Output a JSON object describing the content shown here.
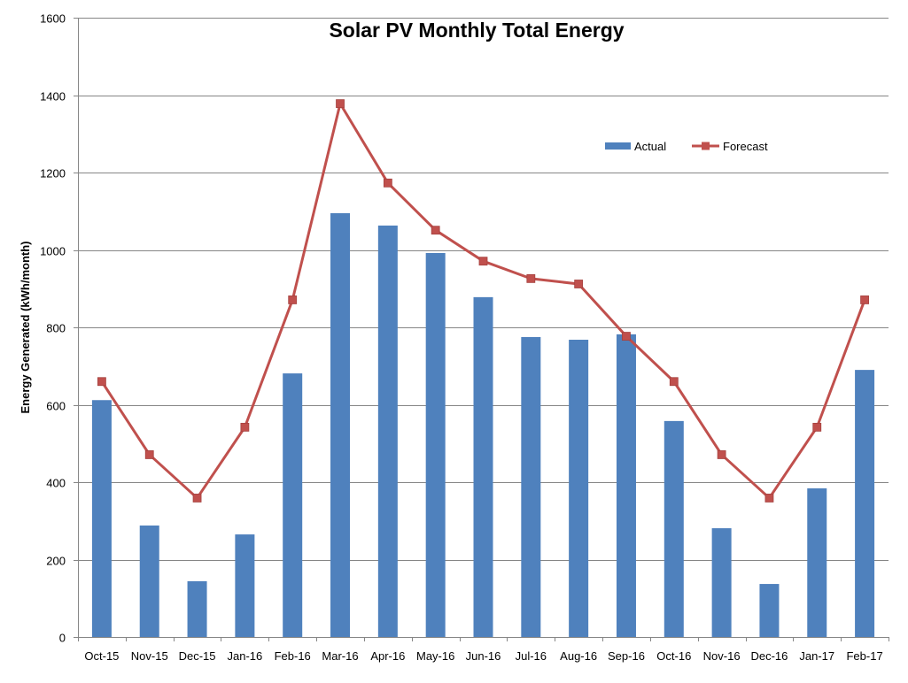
{
  "chart_data": {
    "type": "bar",
    "title": "Solar PV Monthly Total Energy",
    "xlabel": "",
    "ylabel": "Energy Generated (kWh/month)",
    "ylim": [
      0,
      1600
    ],
    "yticks": [
      0,
      200,
      400,
      600,
      800,
      1000,
      1200,
      1400,
      1600
    ],
    "grid": true,
    "legend": "top-right",
    "categories": [
      "Oct-15",
      "Nov-15",
      "Dec-15",
      "Jan-16",
      "Feb-16",
      "Mar-16",
      "Apr-16",
      "May-16",
      "Jun-16",
      "Jul-16",
      "Aug-16",
      "Sep-16",
      "Oct-16",
      "Nov-16",
      "Dec-16",
      "Jan-17",
      "Feb-17"
    ],
    "series": [
      {
        "name": "Actual",
        "type": "bar",
        "color": "#4F81BD",
        "values": [
          612,
          288,
          144,
          265,
          681,
          1095,
          1063,
          992,
          878,
          775,
          768,
          782,
          558,
          281,
          137,
          384,
          690
        ]
      },
      {
        "name": "Forecast",
        "type": "line",
        "color": "#C0504D",
        "values": [
          660,
          471,
          359,
          542,
          871,
          1378,
          1173,
          1051,
          971,
          926,
          912,
          777,
          660,
          471,
          359,
          542,
          871
        ]
      }
    ]
  }
}
